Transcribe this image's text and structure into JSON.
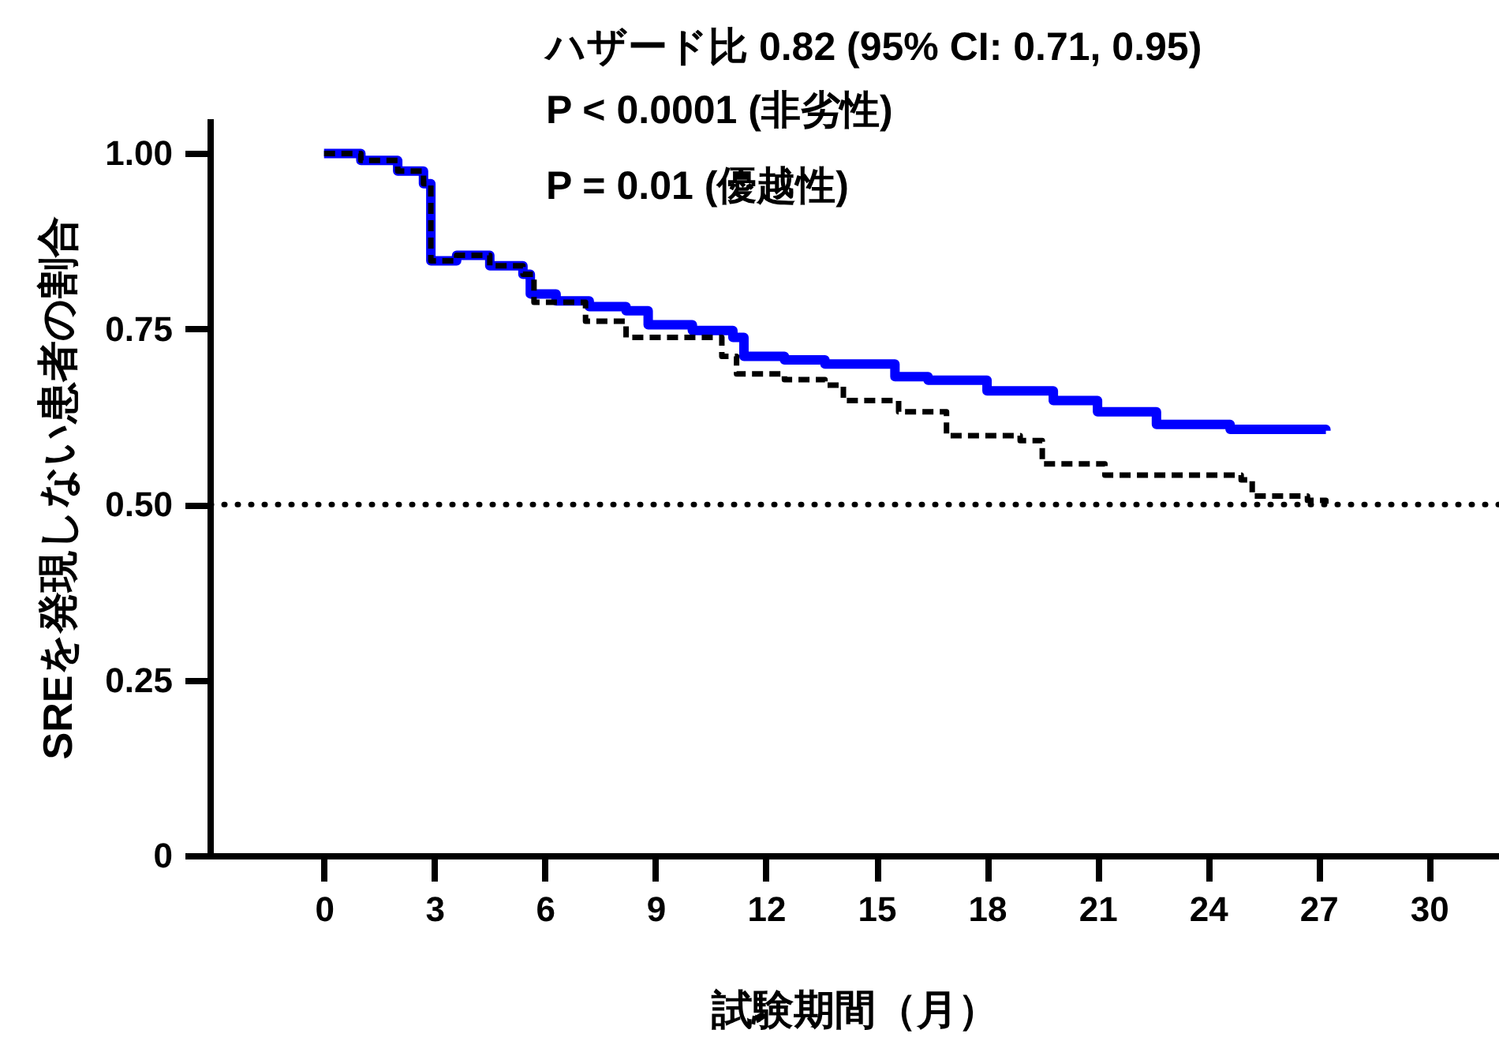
{
  "chart_data": {
    "type": "step",
    "xlabel": "試験期間（月）",
    "ylabel": "SREを発現しない患者の割合",
    "annotations": [
      "ハザード比 0.82 (95% CI: 0.71, 0.95)",
      "P < 0.0001 (非劣性)",
      "P = 0.01 (優越性)"
    ],
    "xlim": [
      -3.1,
      31.9
    ],
    "ylim": [
      0,
      1.05
    ],
    "xticks": [
      0,
      3,
      6,
      9,
      12,
      15,
      18,
      21,
      24,
      27,
      30
    ],
    "yticks": [
      0,
      {
        "value": 0.25,
        "label": "0.25"
      },
      {
        "value": 0.5,
        "label": "0.50"
      },
      {
        "value": 0.75,
        "label": "0.75"
      },
      {
        "value": 1,
        "label": "1.00"
      }
    ],
    "grid": false,
    "ref_lines": [
      {
        "axis": "y",
        "value": 0.5,
        "color": "#000000",
        "line_style": "dotted"
      }
    ],
    "series": [
      {
        "color": "#0000ff",
        "line_style": "solid",
        "x": [
          0,
          1.0,
          2.0,
          2.7,
          2.9,
          3.6,
          4.5,
          5.4,
          5.6,
          6.3,
          7.2,
          8.2,
          8.8,
          10.0,
          11.1,
          11.4,
          12.5,
          13.6,
          15.5,
          16.4,
          18.0,
          19.8,
          21.0,
          22.6,
          24.6,
          27.2
        ],
        "values": [
          1.0,
          0.99,
          0.975,
          0.957,
          0.847,
          0.855,
          0.84,
          0.828,
          0.8,
          0.79,
          0.782,
          0.776,
          0.756,
          0.748,
          0.738,
          0.711,
          0.706,
          0.7,
          0.682,
          0.677,
          0.662,
          0.648,
          0.632,
          0.614,
          0.607,
          0.605
        ]
      },
      {
        "color": "#000000",
        "line_style": "dashed",
        "x": [
          0,
          1.0,
          2.0,
          2.7,
          2.9,
          3.6,
          4.5,
          5.4,
          5.7,
          7.1,
          8.2,
          10.8,
          11.2,
          12.5,
          13.6,
          14.1,
          15.6,
          16.9,
          18.9,
          19.5,
          21.2,
          24.9,
          25.2,
          26.7,
          27.2
        ],
        "values": [
          1.0,
          0.99,
          0.975,
          0.957,
          0.847,
          0.855,
          0.84,
          0.828,
          0.788,
          0.761,
          0.738,
          0.711,
          0.686,
          0.678,
          0.67,
          0.648,
          0.632,
          0.598,
          0.591,
          0.558,
          0.542,
          0.535,
          0.512,
          0.506,
          0.501
        ]
      }
    ]
  }
}
